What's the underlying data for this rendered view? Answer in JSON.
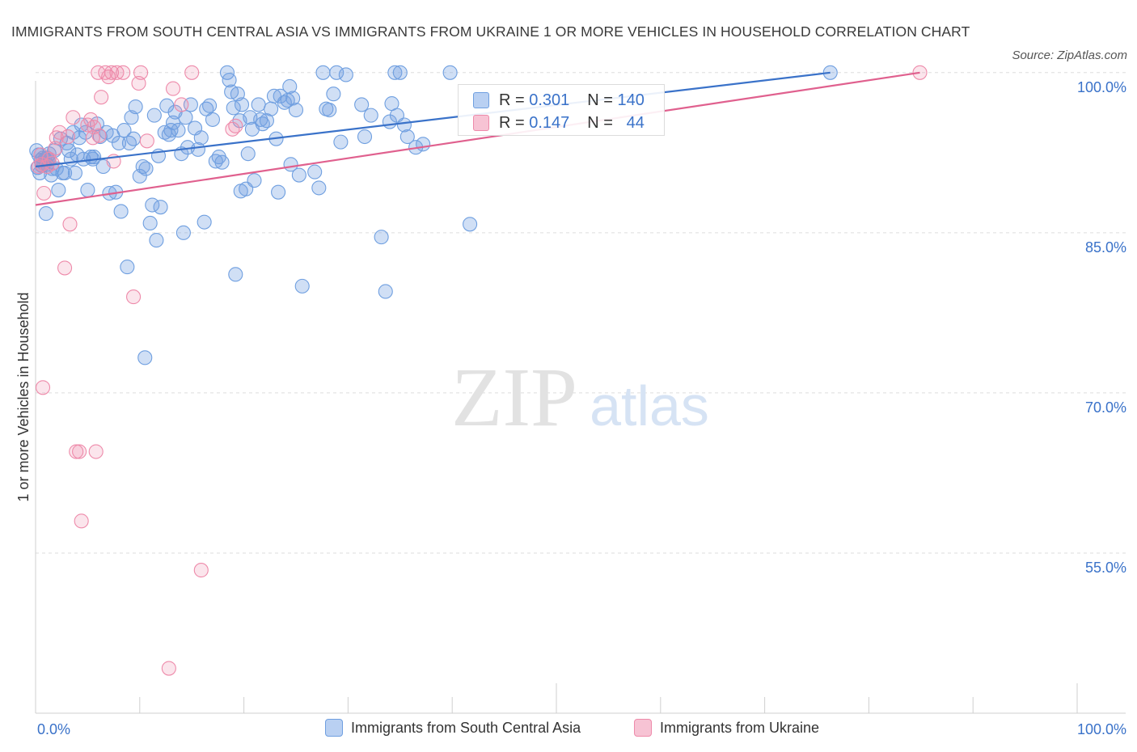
{
  "title": "IMMIGRANTS FROM SOUTH CENTRAL ASIA VS IMMIGRANTS FROM UKRAINE 1 OR MORE VEHICLES IN HOUSEHOLD CORRELATION CHART",
  "source": "Source: ZipAtlas.com",
  "watermark": {
    "zip": "ZIP",
    "atlas": "atlas"
  },
  "colors": {
    "blue": "#6f9fe0",
    "blue_line": "#3a72c9",
    "pink": "#ee8aaa",
    "pink_line": "#e0608e",
    "axis_text": "#3a72c9"
  },
  "legend": {
    "series": [
      {
        "r_label": "R =",
        "r_value": "0.301",
        "n_label": "N =",
        "n_value": "140"
      },
      {
        "r_label": "R =",
        "r_value": "0.147",
        "n_label": "N =",
        "n_value": "44"
      }
    ]
  },
  "chart_data": {
    "type": "scatter",
    "title": "IMMIGRANTS FROM SOUTH CENTRAL ASIA VS IMMIGRANTS FROM UKRAINE 1 OR MORE VEHICLES IN HOUSEHOLD CORRELATION CHART",
    "xlabel": "",
    "ylabel": "1 or more Vehicles in Household",
    "xlim": [
      0,
      100
    ],
    "ylim": [
      40,
      101.5
    ],
    "x_tick_labels": [
      "0.0%",
      "100.0%"
    ],
    "y_ticks": [
      {
        "value": 100,
        "label": "100.0%"
      },
      {
        "value": 85,
        "label": "85.0%"
      },
      {
        "value": 70,
        "label": "70.0%"
      },
      {
        "value": 55,
        "label": "55.0%"
      }
    ],
    "legend_position": "bottom",
    "series": [
      {
        "name": "Immigrants from South Central Asia",
        "color": "blue",
        "trend": {
          "x1": 0,
          "y1": 91.2,
          "x2": 76.3,
          "y2": 100.0
        },
        "points": [
          [
            0.1,
            92.7
          ],
          [
            0.2,
            91.1
          ],
          [
            0.3,
            92.3
          ],
          [
            0.4,
            90.6
          ],
          [
            0.5,
            91.8
          ],
          [
            0.6,
            91.3
          ],
          [
            0.7,
            92.0
          ],
          [
            0.8,
            91.5
          ],
          [
            0.9,
            91.9
          ],
          [
            1.0,
            86.8
          ],
          [
            1.1,
            91.4
          ],
          [
            1.2,
            91.8
          ],
          [
            1.3,
            92.4
          ],
          [
            1.5,
            90.4
          ],
          [
            1.6,
            91.0
          ],
          [
            1.8,
            92.7
          ],
          [
            2.0,
            91.0
          ],
          [
            2.2,
            89.0
          ],
          [
            2.4,
            93.8
          ],
          [
            2.6,
            90.6
          ],
          [
            2.8,
            90.6
          ],
          [
            3.0,
            93.4
          ],
          [
            3.2,
            92.7
          ],
          [
            3.4,
            91.9
          ],
          [
            3.6,
            94.4
          ],
          [
            3.8,
            90.6
          ],
          [
            4.0,
            92.3
          ],
          [
            4.2,
            93.9
          ],
          [
            4.4,
            95.1
          ],
          [
            4.6,
            91.9
          ],
          [
            4.8,
            94.4
          ],
          [
            5.0,
            89.0
          ],
          [
            5.3,
            92.1
          ],
          [
            5.6,
            92.1
          ],
          [
            5.9,
            95.2
          ],
          [
            6.2,
            94.0
          ],
          [
            6.5,
            91.2
          ],
          [
            6.8,
            94.4
          ],
          [
            7.1,
            88.7
          ],
          [
            7.4,
            94.1
          ],
          [
            7.7,
            88.8
          ],
          [
            8.0,
            93.4
          ],
          [
            8.2,
            87.0
          ],
          [
            8.5,
            94.6
          ],
          [
            8.8,
            81.8
          ],
          [
            9.0,
            93.4
          ],
          [
            9.2,
            95.8
          ],
          [
            9.4,
            93.8
          ],
          [
            9.6,
            96.8
          ],
          [
            10.0,
            90.3
          ],
          [
            10.3,
            91.2
          ],
          [
            10.6,
            91.0
          ],
          [
            11.0,
            85.9
          ],
          [
            11.2,
            87.6
          ],
          [
            11.4,
            96.0
          ],
          [
            11.6,
            84.3
          ],
          [
            11.8,
            92.2
          ],
          [
            12.0,
            87.4
          ],
          [
            12.4,
            94.4
          ],
          [
            12.6,
            96.9
          ],
          [
            13.0,
            94.6
          ],
          [
            13.2,
            95.3
          ],
          [
            13.4,
            96.3
          ],
          [
            13.7,
            94.6
          ],
          [
            14.0,
            92.4
          ],
          [
            14.2,
            85.0
          ],
          [
            14.4,
            95.8
          ],
          [
            14.6,
            93.0
          ],
          [
            14.9,
            97.0
          ],
          [
            15.3,
            94.8
          ],
          [
            15.6,
            92.8
          ],
          [
            15.9,
            93.9
          ],
          [
            16.2,
            86.0
          ],
          [
            16.4,
            96.6
          ],
          [
            16.7,
            96.9
          ],
          [
            17.0,
            95.6
          ],
          [
            17.3,
            91.7
          ],
          [
            17.6,
            92.1
          ],
          [
            17.9,
            91.6
          ],
          [
            18.4,
            100.0
          ],
          [
            18.6,
            99.3
          ],
          [
            18.8,
            98.2
          ],
          [
            19.0,
            96.7
          ],
          [
            19.2,
            81.1
          ],
          [
            19.4,
            98.0
          ],
          [
            19.6,
            95.5
          ],
          [
            19.8,
            97.0
          ],
          [
            20.2,
            89.1
          ],
          [
            20.4,
            92.4
          ],
          [
            20.6,
            95.8
          ],
          [
            20.8,
            94.7
          ],
          [
            21.0,
            89.9
          ],
          [
            21.4,
            97.0
          ],
          [
            21.6,
            95.6
          ],
          [
            21.8,
            95.2
          ],
          [
            22.2,
            95.5
          ],
          [
            22.6,
            96.6
          ],
          [
            22.9,
            97.8
          ],
          [
            23.1,
            93.8
          ],
          [
            23.3,
            88.8
          ],
          [
            23.5,
            97.8
          ],
          [
            23.9,
            97.2
          ],
          [
            24.2,
            97.4
          ],
          [
            24.5,
            91.4
          ],
          [
            24.4,
            98.7
          ],
          [
            24.7,
            97.6
          ],
          [
            25.0,
            96.5
          ],
          [
            25.3,
            90.4
          ],
          [
            25.6,
            80.0
          ],
          [
            26.8,
            90.7
          ],
          [
            27.2,
            89.2
          ],
          [
            27.6,
            100.0
          ],
          [
            27.9,
            96.6
          ],
          [
            28.2,
            96.5
          ],
          [
            28.6,
            98.0
          ],
          [
            28.9,
            100.0
          ],
          [
            29.3,
            93.5
          ],
          [
            29.8,
            99.8
          ],
          [
            31.3,
            97.0
          ],
          [
            31.6,
            94.0
          ],
          [
            32.2,
            96.0
          ],
          [
            33.2,
            84.6
          ],
          [
            33.6,
            79.5
          ],
          [
            34.0,
            95.4
          ],
          [
            34.2,
            97.1
          ],
          [
            34.5,
            100.0
          ],
          [
            34.7,
            96.0
          ],
          [
            35.0,
            100.0
          ],
          [
            35.4,
            95.1
          ],
          [
            35.7,
            94.0
          ],
          [
            36.5,
            93.0
          ],
          [
            37.2,
            93.3
          ],
          [
            39.8,
            100.0
          ],
          [
            41.7,
            85.8
          ],
          [
            1.1,
            92.0
          ],
          [
            5.5,
            91.9
          ],
          [
            10.5,
            73.3
          ],
          [
            12.8,
            94.2
          ],
          [
            19.7,
            88.9
          ],
          [
            76.3,
            100.0
          ]
        ]
      },
      {
        "name": "Immigrants from Ukraine",
        "color": "pink",
        "trend": {
          "x1": 0,
          "y1": 87.6,
          "x2": 84.9,
          "y2": 100.0
        },
        "points": [
          [
            0.3,
            91.2
          ],
          [
            0.5,
            92.3
          ],
          [
            0.6,
            91.4
          ],
          [
            0.7,
            70.5
          ],
          [
            0.8,
            88.7
          ],
          [
            1.1,
            91.2
          ],
          [
            1.3,
            91.9
          ],
          [
            1.6,
            91.5
          ],
          [
            1.9,
            92.9
          ],
          [
            2.0,
            93.9
          ],
          [
            2.3,
            94.4
          ],
          [
            2.8,
            81.7
          ],
          [
            3.1,
            94.0
          ],
          [
            3.3,
            85.8
          ],
          [
            3.6,
            95.8
          ],
          [
            3.9,
            64.5
          ],
          [
            4.2,
            64.5
          ],
          [
            4.4,
            58.0
          ],
          [
            5.0,
            95.1
          ],
          [
            5.3,
            95.6
          ],
          [
            5.6,
            94.9
          ],
          [
            5.8,
            64.5
          ],
          [
            6.0,
            100.0
          ],
          [
            6.1,
            94.1
          ],
          [
            6.3,
            97.7
          ],
          [
            6.7,
            100.0
          ],
          [
            7.0,
            99.6
          ],
          [
            7.3,
            100.0
          ],
          [
            7.5,
            91.7
          ],
          [
            7.8,
            100.0
          ],
          [
            8.4,
            100.0
          ],
          [
            9.4,
            79.0
          ],
          [
            9.9,
            99.0
          ],
          [
            10.1,
            100.0
          ],
          [
            10.7,
            93.6
          ],
          [
            12.8,
            44.2
          ],
          [
            13.2,
            98.5
          ],
          [
            14.0,
            97.0
          ],
          [
            15.0,
            100.0
          ],
          [
            15.9,
            53.4
          ],
          [
            18.9,
            94.7
          ],
          [
            19.2,
            95.0
          ],
          [
            5.5,
            93.9
          ],
          [
            84.9,
            100.0
          ]
        ]
      }
    ]
  },
  "bottom_legend": [
    {
      "label": "Immigrants from South Central Asia"
    },
    {
      "label": "Immigrants from Ukraine"
    }
  ]
}
